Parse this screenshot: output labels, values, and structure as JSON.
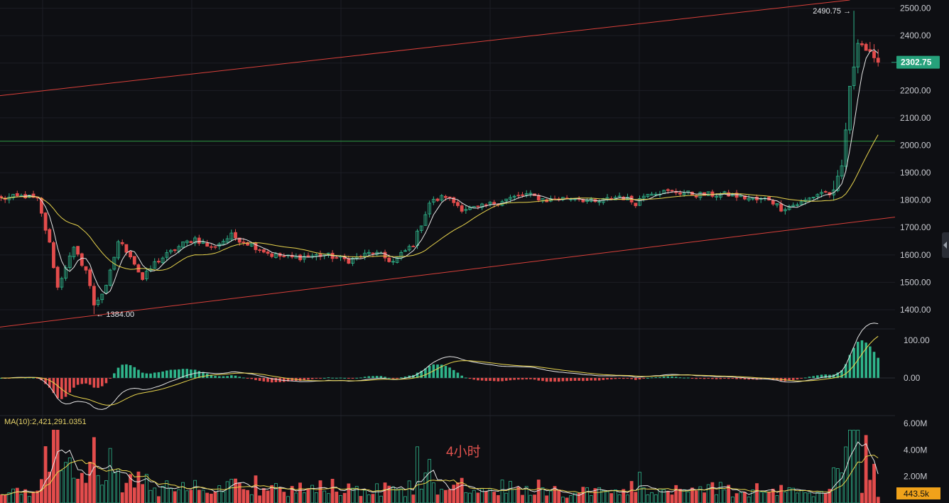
{
  "chart_data": [
    {
      "type": "candlestick",
      "pane": "price",
      "yticks": [
        1400,
        1500,
        1600,
        1700,
        1800,
        1900,
        2000,
        2100,
        2200,
        2300,
        2400,
        2500
      ],
      "ytick_labels": [
        "1400.00",
        "1500.00",
        "1600.00",
        "1700.00",
        "1800.00",
        "1900.00",
        "2000.00",
        "2100.00",
        "2200.00",
        "2300.00",
        "2400.00",
        "2500.00"
      ],
      "ylim": [
        1330,
        2530
      ],
      "last_price": 2302.75,
      "last_price_label": "2302.75",
      "high_annotation": {
        "value": 2490.75,
        "label": "2490.75 →",
        "bar": 211
      },
      "low_annotation": {
        "value": 1384.0,
        "label": "← 1384.00",
        "bar": 23
      },
      "keypoints": [
        [
          0,
          1805
        ],
        [
          6,
          1815
        ],
        [
          9,
          1800
        ],
        [
          12,
          1640
        ],
        [
          14,
          1480
        ],
        [
          16,
          1560
        ],
        [
          18,
          1620
        ],
        [
          21,
          1545
        ],
        [
          23,
          1420
        ],
        [
          26,
          1480
        ],
        [
          29,
          1650
        ],
        [
          32,
          1600
        ],
        [
          35,
          1510
        ],
        [
          38,
          1570
        ],
        [
          45,
          1640
        ],
        [
          48,
          1660
        ],
        [
          52,
          1625
        ],
        [
          57,
          1670
        ],
        [
          63,
          1630
        ],
        [
          67,
          1600
        ],
        [
          72,
          1590
        ],
        [
          80,
          1600
        ],
        [
          86,
          1580
        ],
        [
          92,
          1610
        ],
        [
          97,
          1575
        ],
        [
          102,
          1640
        ],
        [
          106,
          1790
        ],
        [
          110,
          1815
        ],
        [
          114,
          1770
        ],
        [
          118,
          1770
        ],
        [
          124,
          1800
        ],
        [
          130,
          1820
        ],
        [
          135,
          1800
        ],
        [
          142,
          1810
        ],
        [
          147,
          1790
        ],
        [
          153,
          1815
        ],
        [
          157,
          1790
        ],
        [
          160,
          1830
        ],
        [
          167,
          1830
        ],
        [
          172,
          1820
        ],
        [
          180,
          1820
        ],
        [
          187,
          1800
        ],
        [
          190,
          1805
        ],
        [
          193,
          1770
        ],
        [
          198,
          1790
        ],
        [
          203,
          1830
        ],
        [
          206,
          1820
        ],
        [
          208,
          1920
        ],
        [
          210,
          2200
        ],
        [
          212,
          2390
        ],
        [
          214,
          2350
        ],
        [
          216,
          2300
        ]
      ],
      "overlays": [
        {
          "kind": "upper-trendline",
          "from": [
            -4,
            2175
          ],
          "to": [
            210,
            2530
          ],
          "color": "#d9403a"
        },
        {
          "kind": "lower-trendline",
          "from": [
            -4,
            1330
          ],
          "to": [
            225,
            1745
          ],
          "color": "#d9403a"
        },
        {
          "kind": "horizontal-level",
          "value": 2015,
          "color": "#2f9e44"
        },
        {
          "kind": "ma-fast",
          "period": 5,
          "color": "#e6e6e6"
        },
        {
          "kind": "ma-slow",
          "period": 20,
          "color": "#e8d44d"
        }
      ]
    },
    {
      "type": "macd",
      "pane": "indicator",
      "yticks": [
        0,
        100
      ],
      "ytick_labels": [
        "0.00",
        "100.00"
      ],
      "ylim": [
        -100,
        130
      ],
      "note": "histogram and signal lines derived from price series"
    },
    {
      "type": "bar",
      "pane": "volume",
      "yticks": [
        2000000,
        4000000,
        6000000
      ],
      "ytick_labels": [
        "2.00M",
        "4.00M",
        "6.00M"
      ],
      "ylim": [
        0,
        6000000
      ],
      "ma_readout": "MA(10):2,421,291.0351",
      "last_volume_label": "443.5k",
      "timeframe_label": "4小时"
    }
  ],
  "colors": {
    "background": "#0e0f13",
    "grid": "#1c1e24",
    "up": "#2fb58b",
    "down": "#e34c4c",
    "price_badge": "#26a17b",
    "volume_badge": "#f0a21a"
  }
}
